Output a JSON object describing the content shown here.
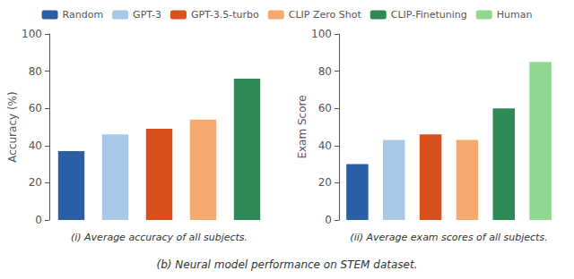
{
  "chart_data": [
    {
      "type": "bar",
      "title": "(i) Average accuracy of all subjects.",
      "y_label": "Accuracy (%)",
      "categories": [
        "Random",
        "GPT-3",
        "GPT-3.5-turbo",
        "CLIP Zero Shot",
        "CLIP-Finetuning"
      ],
      "values": [
        37,
        46,
        49,
        54,
        76
      ],
      "colors": [
        "#2b5fa5",
        "#a8c8e8",
        "#d94f1e",
        "#f5a96e",
        "#2e8b57"
      ],
      "ylim": [
        0,
        100
      ],
      "yticks": [
        0,
        20,
        40,
        60,
        80,
        100
      ],
      "grid": false,
      "legend": "top",
      "tick_labels": "y",
      "annotations": [
        "(b) Neural model performance on STEM dataset."
      ]
    },
    {
      "type": "bar",
      "title": "(ii) Average exam scores of all subjects.",
      "y_label": "Exam Score",
      "categories": [
        "Random",
        "GPT-3",
        "GPT-3.5-turbo",
        "CLIP Zero Shot",
        "CLIP-Finetuning",
        "Human"
      ],
      "values": [
        30,
        43,
        46,
        43,
        60,
        85
      ],
      "colors": [
        "#2b5fa5",
        "#a8c8e8",
        "#d94f1e",
        "#f5a96e",
        "#2e8b57",
        "#90d890"
      ],
      "ylim": [
        0,
        100
      ],
      "yticks": [
        0,
        20,
        40,
        60,
        80,
        100
      ],
      "grid": false,
      "legend": "top",
      "tick_labels": "y"
    }
  ]
}
